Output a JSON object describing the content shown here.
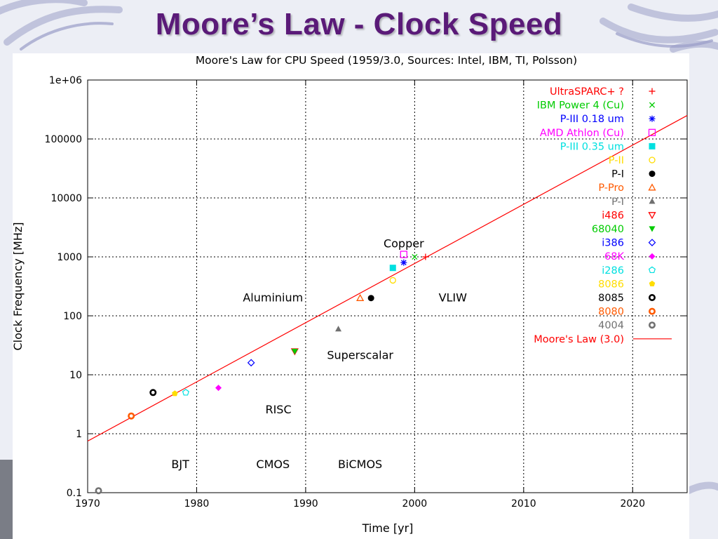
{
  "slide": {
    "title": "Moore’s Law - Clock Speed"
  },
  "chart_data": {
    "type": "scatter",
    "title": "Moore's Law for CPU Speed (1959/3.0, Sources: Intel, IBM, TI, Polsson)",
    "xlabel": "Time [yr]",
    "ylabel": "Clock Frequency [MHz]",
    "xlim": [
      1970,
      2025
    ],
    "ylim": [
      0.1,
      1000000
    ],
    "yscale": "log",
    "grid": true,
    "legend_position": "top-right",
    "x_ticks": [
      1970,
      1980,
      1990,
      2000,
      2010,
      2020
    ],
    "x_tick_labels": [
      "1970",
      "1980",
      "1990",
      "2000",
      "2010",
      "2020"
    ],
    "y_ticks": [
      0.1,
      1,
      10,
      100,
      1000,
      10000,
      100000,
      1000000
    ],
    "y_tick_labels": [
      "0.1",
      "1",
      "10",
      "100",
      "1000",
      "10000",
      "100000",
      "1e+06"
    ],
    "series": [
      {
        "name": "UltraSPARC+ ?",
        "color": "#ff0000",
        "marker": "plus",
        "points": [
          [
            2001,
            1000
          ]
        ]
      },
      {
        "name": "IBM Power 4 (Cu)",
        "color": "#00cc00",
        "marker": "cross",
        "points": [
          [
            2000,
            1000
          ]
        ]
      },
      {
        "name": "P-III 0.18 um",
        "color": "#0000ff",
        "marker": "star",
        "points": [
          [
            1999,
            800
          ]
        ]
      },
      {
        "name": "AMD Athlon (Cu)",
        "color": "#ff00ff",
        "marker": "square-open",
        "points": [
          [
            1999,
            1100
          ]
        ]
      },
      {
        "name": "P-III 0.35 um",
        "color": "#00e0e0",
        "marker": "square",
        "points": [
          [
            1998,
            650
          ]
        ]
      },
      {
        "name": "P-II",
        "color": "#ffdd00",
        "marker": "circle-open",
        "points": [
          [
            1998,
            400
          ]
        ]
      },
      {
        "name": "P-I",
        "color": "#000000",
        "marker": "circle",
        "points": [
          [
            1996,
            200
          ]
        ]
      },
      {
        "name": "P-Pro",
        "color": "#ff5a00",
        "marker": "triangle-open",
        "points": [
          [
            1995,
            200
          ]
        ]
      },
      {
        "name": "P-I",
        "color": "#707070",
        "marker": "triangle",
        "points": [
          [
            1993,
            60
          ]
        ]
      },
      {
        "name": "i486",
        "color": "#ff0000",
        "marker": "triangle-down-open",
        "points": [
          [
            1989,
            25
          ]
        ]
      },
      {
        "name": "68040",
        "color": "#00cc00",
        "marker": "triangle-down",
        "points": [
          [
            1989,
            25
          ]
        ]
      },
      {
        "name": "i386",
        "color": "#0000ff",
        "marker": "diamond-open",
        "points": [
          [
            1985,
            16
          ]
        ]
      },
      {
        "name": "68K",
        "color": "#ff00ff",
        "marker": "diamond",
        "points": [
          [
            1982,
            6
          ]
        ]
      },
      {
        "name": "i286",
        "color": "#00e0e0",
        "marker": "pentagon-open",
        "points": [
          [
            1979,
            5
          ]
        ]
      },
      {
        "name": "8086",
        "color": "#ffdd00",
        "marker": "pentagon",
        "points": [
          [
            1978,
            4.8
          ]
        ]
      },
      {
        "name": "8085",
        "color": "#000000",
        "marker": "circle-thick",
        "points": [
          [
            1976,
            5
          ]
        ]
      },
      {
        "name": "8080",
        "color": "#ff5a00",
        "marker": "circle-thick",
        "points": [
          [
            1974,
            2
          ]
        ]
      },
      {
        "name": "4004",
        "color": "#707070",
        "marker": "circle-thick",
        "points": [
          [
            1971,
            0.108
          ]
        ]
      }
    ],
    "trend_line": {
      "name": "Moore's Law (3.0)",
      "color": "#ff0000",
      "points": [
        [
          1970,
          0.75
        ],
        [
          2025,
          250000
        ]
      ]
    },
    "annotations": [
      {
        "text": "Copper",
        "x": 1999,
        "y": 1450
      },
      {
        "text": "Aluminium",
        "x": 1987,
        "y": 175
      },
      {
        "text": "VLIW",
        "x": 2003.5,
        "y": 175
      },
      {
        "text": "Superscalar",
        "x": 1995,
        "y": 18.5
      },
      {
        "text": "RISC",
        "x": 1987.5,
        "y": 2.2
      },
      {
        "text": "BJT",
        "x": 1978.5,
        "y": 0.26
      },
      {
        "text": "CMOS",
        "x": 1987,
        "y": 0.26
      },
      {
        "text": "BiCMOS",
        "x": 1995,
        "y": 0.26
      }
    ]
  }
}
